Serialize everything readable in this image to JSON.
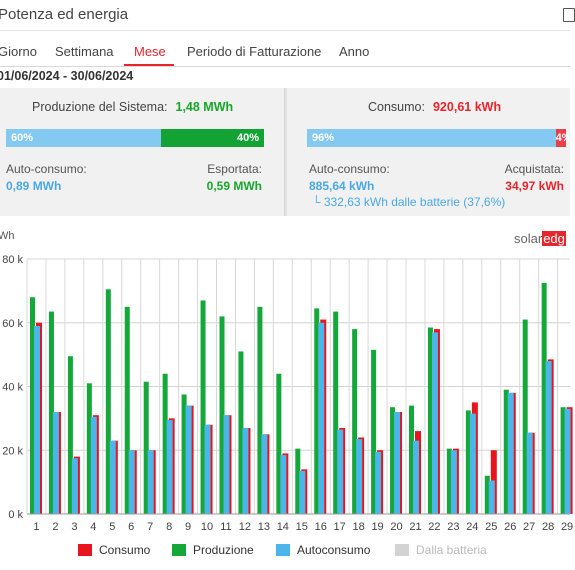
{
  "header": {
    "title": "Potenza ed energia"
  },
  "tabs": [
    {
      "label": "Giorno",
      "active": false
    },
    {
      "label": "Settimana",
      "active": false
    },
    {
      "label": "Mese",
      "active": true
    },
    {
      "label": "Periodo di Fatturazione",
      "active": false
    },
    {
      "label": "Anno",
      "active": false
    }
  ],
  "date_range": "01/06/2024 - 30/06/2024",
  "production": {
    "label": "Produzione del Sistema:",
    "value": "1,48 MWh",
    "bar_left_pct": "60%",
    "bar_right_pct": "40%",
    "self_label": "Auto-consumo:",
    "self_value": "0,89 MWh",
    "export_label": "Esportata:",
    "export_value": "0,59 MWh"
  },
  "consumption": {
    "label": "Consumo:",
    "value": "920,61 kWh",
    "bar_left_pct": "96%",
    "bar_right_pct": "4%",
    "self_label": "Auto-consumo:",
    "self_value": "885,64 kWh",
    "bought_label": "Acquistata:",
    "bought_value": "34,97 kWh",
    "battery_note": "└ 332,63 kWh dalle batterie (37,6%)"
  },
  "chart_unit": "Wh",
  "brand": {
    "part1": "solar",
    "part2": "edg"
  },
  "colors": {
    "consumo": "#e8141e",
    "produzione": "#14a83a",
    "autoconsumo": "#4cb6ea",
    "batteria": "#d3d3d3",
    "accent": "#e6252c"
  },
  "legend": [
    {
      "label": "Consumo",
      "color": "#e8141e",
      "enabled": true
    },
    {
      "label": "Produzione",
      "color": "#14a83a",
      "enabled": true
    },
    {
      "label": "Autoconsumo",
      "color": "#4cb6ea",
      "enabled": true
    },
    {
      "label": "Dalla batteria",
      "color": "#d3d3d3",
      "enabled": false
    }
  ],
  "chart_data": {
    "type": "bar",
    "categories": [
      "1",
      "2",
      "3",
      "4",
      "5",
      "6",
      "7",
      "8",
      "9",
      "10",
      "11",
      "12",
      "13",
      "14",
      "15",
      "16",
      "17",
      "18",
      "19",
      "20",
      "21",
      "22",
      "23",
      "24",
      "25",
      "26",
      "27",
      "28",
      "29"
    ],
    "ytick_labels": [
      "0 k",
      "20 k",
      "40 k",
      "60 k",
      "80 k"
    ],
    "ylim": [
      0,
      80
    ],
    "grid": true,
    "series": [
      {
        "name": "Consumo",
        "values": [
          60,
          32,
          18,
          31,
          23,
          20,
          20,
          30,
          34,
          28,
          31,
          27,
          25,
          19,
          14,
          61,
          27,
          24,
          20,
          32,
          26,
          58,
          20.5,
          35,
          20,
          38,
          25.5,
          48.5,
          33.5
        ]
      },
      {
        "name": "Produzione",
        "values": [
          68,
          63.5,
          49.5,
          41,
          70.5,
          65,
          41.5,
          44,
          37.5,
          67,
          62,
          51,
          65,
          44,
          20.5,
          64.5,
          63.5,
          58,
          51.5,
          33.5,
          34,
          58.5,
          20.5,
          32.5,
          12,
          39,
          61,
          72.5,
          33.5
        ]
      },
      {
        "name": "Autoconsumo",
        "values": [
          59,
          32,
          17.5,
          30.5,
          23,
          20,
          20,
          29.5,
          34,
          28,
          31,
          27,
          25,
          18.5,
          13.5,
          60,
          26.5,
          23.5,
          19.5,
          32,
          23,
          57,
          20,
          31.5,
          10.5,
          38,
          25.5,
          48,
          33
        ]
      }
    ]
  }
}
